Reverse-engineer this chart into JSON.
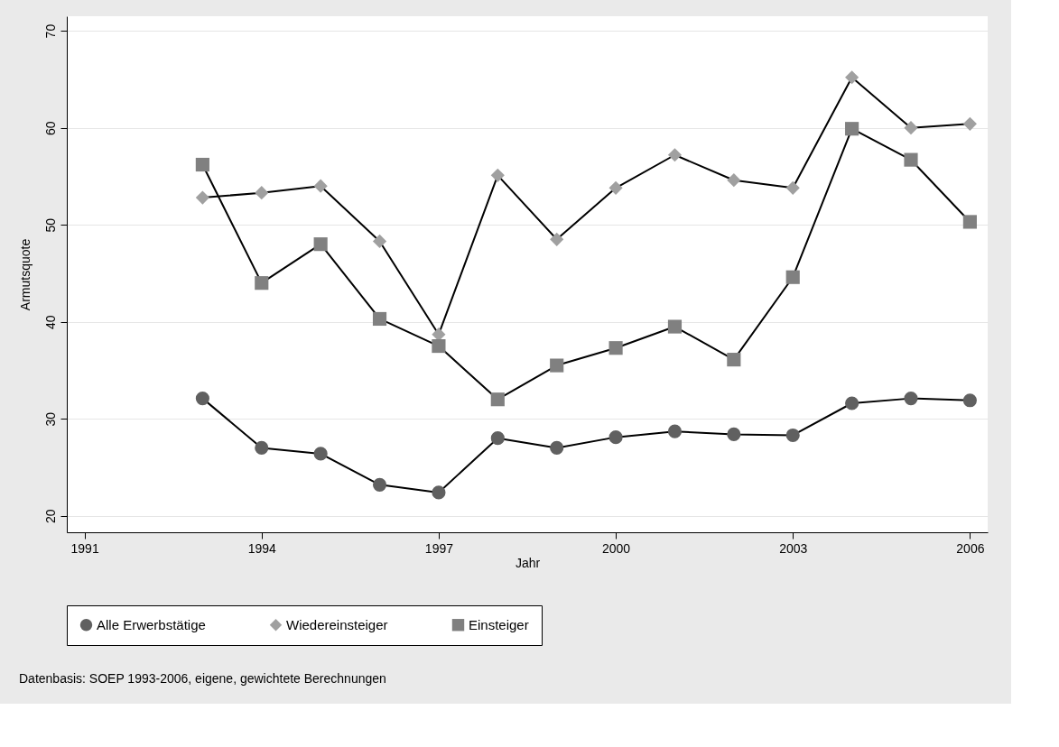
{
  "chart_data": {
    "type": "line",
    "xlabel": "Jahr",
    "ylabel": "Armutsquote",
    "x": [
      1993,
      1994,
      1995,
      1996,
      1997,
      1998,
      1999,
      2000,
      2001,
      2002,
      2003,
      2004,
      2005,
      2006
    ],
    "series": [
      {
        "name": "Alle Erwerbstätige",
        "color": "#606060",
        "marker": "circle",
        "values": [
          32.1,
          27.0,
          26.4,
          23.2,
          22.4,
          28.0,
          27.0,
          28.1,
          28.7,
          28.4,
          28.3,
          31.6,
          32.1,
          31.9
        ]
      },
      {
        "name": "Wiedereinsteiger",
        "color": "#a0a0a0",
        "marker": "diamond",
        "values": [
          52.8,
          53.3,
          54.0,
          48.3,
          38.7,
          55.1,
          48.5,
          53.8,
          57.2,
          54.6,
          53.8,
          65.2,
          60.0,
          60.4
        ]
      },
      {
        "name": "Einsteiger",
        "color": "#808080",
        "marker": "square",
        "values": [
          56.2,
          44.0,
          48.0,
          40.3,
          37.5,
          32.0,
          35.5,
          37.3,
          39.5,
          36.1,
          44.6,
          59.9,
          56.7,
          50.3
        ]
      }
    ],
    "xlim": [
      1990.7,
      2006.3
    ],
    "xticks": [
      1991,
      1994,
      1997,
      2000,
      2003,
      2006
    ],
    "ylim": [
      18.3,
      71.5
    ],
    "yticks": [
      20,
      30,
      40,
      50,
      60,
      70
    ],
    "grid": "y",
    "legend": "bottom",
    "line_style": "solid",
    "annotations": [
      "Datenbasis: SOEP 1993-2006, eigene, gewichtete Berechnungen"
    ]
  }
}
